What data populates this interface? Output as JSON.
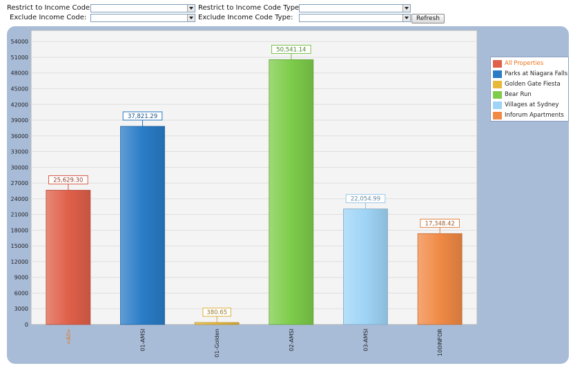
{
  "filters": {
    "restrict_income_code": {
      "label": "Restrict to Income Code:",
      "value": ""
    },
    "restrict_income_code_type": {
      "label": "Restrict to Income Code Type:",
      "value": ""
    },
    "exclude_income_code": {
      "label": "Exclude Income Code:",
      "value": ""
    },
    "exclude_income_code_type": {
      "label": "Exclude Income Code Type:",
      "value": ""
    },
    "refresh_label": "Refresh"
  },
  "chart_data": {
    "type": "bar",
    "categories": [
      "<All>",
      "01-AMSI",
      "01-Golden",
      "02-AMSI",
      "03-AMSI",
      "100INFOR"
    ],
    "values": [
      25629.3,
      37821.29,
      380.65,
      50541.14,
      22054.99,
      17348.42
    ],
    "value_labels": [
      "25,629.30",
      "37,821.29",
      "380.65",
      "50,541.14",
      "22,054.99",
      "17,348.42"
    ],
    "title": "",
    "xlabel": "",
    "ylabel": "",
    "ylim": [
      0,
      54000
    ],
    "yticks": [
      0,
      3000,
      6000,
      9000,
      12000,
      15000,
      18000,
      21000,
      24000,
      27000,
      30000,
      33000,
      36000,
      39000,
      42000,
      45000,
      48000,
      51000,
      54000
    ],
    "grid": true,
    "legend_position": "right",
    "legend": [
      "All Properties",
      "Parks at Niagara Falls",
      "Golden Gate Fiesta",
      "Bear Run",
      "Villages at Sydney",
      "Inforum Apartments"
    ],
    "colors": [
      "#e0604a",
      "#2a7cc7",
      "#e8b83a",
      "#7dcc4a",
      "#9fd4f6",
      "#f08a45"
    ],
    "highlight_color": "#e8731a"
  }
}
